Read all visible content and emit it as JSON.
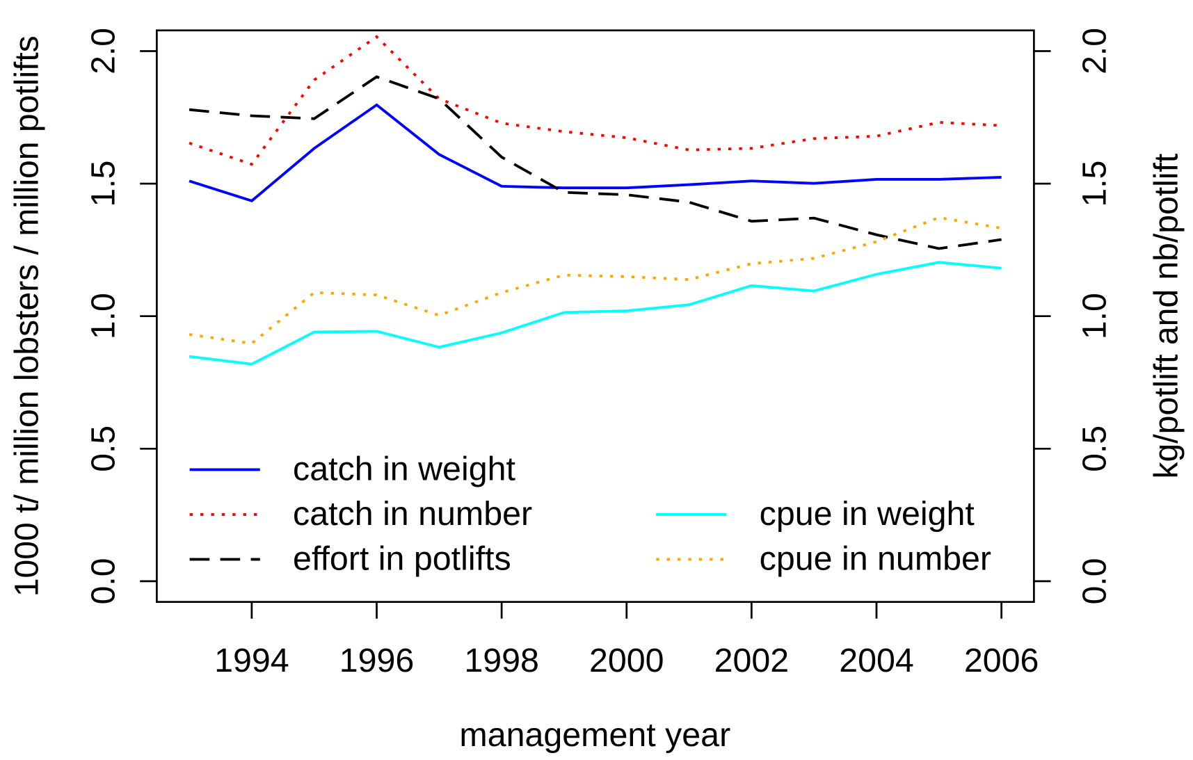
{
  "chart_data": {
    "type": "line",
    "x_label": "management year",
    "y_label": "1000 t/ million lobsters / million potlifts",
    "y2_label": "kg/potlift and nb/potlift",
    "x": [
      1993,
      1994,
      1995,
      1996,
      1997,
      1998,
      1999,
      2000,
      2001,
      2002,
      2003,
      2004,
      2005,
      2006
    ],
    "xlim": [
      1992.48,
      2006.52
    ],
    "xticks": [
      1994,
      1996,
      1998,
      2000,
      2002,
      2004,
      2006
    ],
    "ylim": [
      -0.078,
      2.078
    ],
    "yticks": [
      {
        "value": 0,
        "label": "0.0"
      },
      {
        "value": 0.5,
        "label": "0.5"
      },
      {
        "value": 1,
        "label": "1.0"
      },
      {
        "value": 1.5,
        "label": "1.5"
      },
      {
        "value": 2,
        "label": "2.0"
      }
    ],
    "y2lim": [
      -0.078,
      2.078
    ],
    "y2ticks": [
      {
        "value": 0,
        "label": "0.0"
      },
      {
        "value": 0.5,
        "label": "0.5"
      },
      {
        "value": 1,
        "label": "1.0"
      },
      {
        "value": 1.5,
        "label": "1.5"
      },
      {
        "value": 2,
        "label": "2.0"
      }
    ],
    "series": [
      {
        "name": "catch in weight",
        "color": "#0000ff",
        "dash": "solid",
        "values": [
          1.51,
          1.435,
          1.633,
          1.797,
          1.61,
          1.49,
          1.484,
          1.484,
          1.496,
          1.51,
          1.501,
          1.516,
          1.516,
          1.524
        ]
      },
      {
        "name": "catch in number",
        "color": "#ff0000",
        "dash": "dotted",
        "values": [
          1.653,
          1.573,
          1.891,
          2.054,
          1.82,
          1.728,
          1.696,
          1.673,
          1.627,
          1.633,
          1.67,
          1.679,
          1.731,
          1.719
        ]
      },
      {
        "name": "effort in potlifts",
        "color": "#000000",
        "dash": "dashed",
        "values": [
          1.779,
          1.756,
          1.745,
          1.903,
          1.82,
          1.6,
          1.467,
          1.458,
          1.43,
          1.358,
          1.37,
          1.307,
          1.255,
          1.289
        ]
      },
      {
        "name": "cpue in weight",
        "color": "#00ffff",
        "dash": "solid",
        "axis": "y2",
        "values": [
          0.848,
          0.819,
          0.94,
          0.943,
          0.883,
          0.937,
          1.014,
          1.02,
          1.043,
          1.115,
          1.095,
          1.158,
          1.203,
          1.181
        ]
      },
      {
        "name": "cpue in number",
        "color": "#ffa500",
        "dash": "dotted",
        "axis": "y2",
        "values": [
          0.931,
          0.897,
          1.089,
          1.08,
          1.003,
          1.089,
          1.155,
          1.149,
          1.138,
          1.198,
          1.218,
          1.281,
          1.372,
          1.332
        ]
      }
    ]
  }
}
